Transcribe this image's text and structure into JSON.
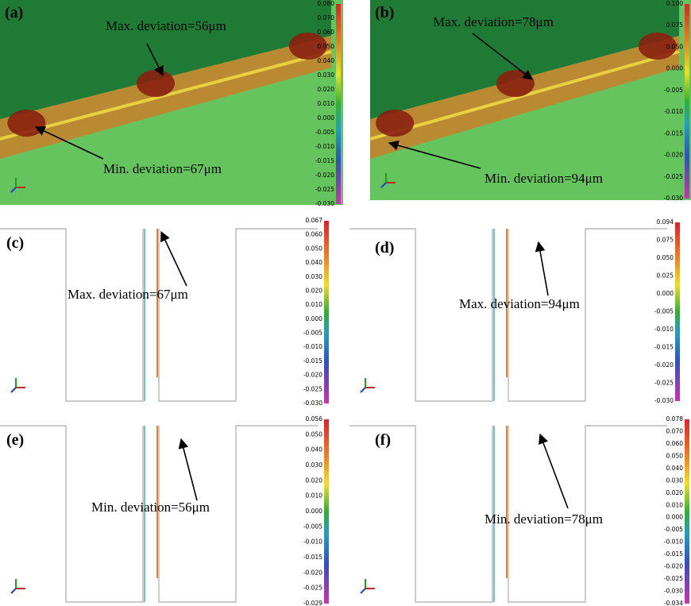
{
  "panels": [
    {
      "label": "(a)",
      "annotations": [
        "Max. deviation=56μm",
        "Min. deviation=67μm"
      ],
      "scale_ticks": [
        "0.080",
        "0.070",
        "0.060",
        "0.050",
        "0.040",
        "0.030",
        "0.020",
        "0.010",
        "0.000",
        "-0.005",
        "-0.010",
        "-0.015",
        "-0.020",
        "-0.025",
        "-0.030"
      ]
    },
    {
      "label": "(b)",
      "annotations": [
        "Max. deviation=78μm",
        "Min. deviation=94μm"
      ],
      "scale_ticks": [
        "0.100",
        "0.075",
        "0.050",
        "0.000",
        "-0.005",
        "-0.010",
        "-0.015",
        "-0.020",
        "-0.025",
        "-0.030"
      ]
    },
    {
      "label": "(c)",
      "annotations": [
        "Max. deviation=67μm"
      ],
      "scale_ticks": [
        "0.067",
        "0.060",
        "0.050",
        "0.040",
        "0.030",
        "0.020",
        "0.010",
        "0.000",
        "-0.005",
        "-0.010",
        "-0.015",
        "-0.020",
        "-0.025",
        "-0.030"
      ]
    },
    {
      "label": "(d)",
      "annotations": [
        "Max. deviation=94μm"
      ],
      "scale_ticks": [
        "0.094",
        "0.075",
        "0.050",
        "0.025",
        "0.000",
        "-0.005",
        "-0.010",
        "-0.015",
        "-0.020",
        "-0.025",
        "-0.030"
      ]
    },
    {
      "label": "(e)",
      "annotations": [
        "Min. deviation=56μm"
      ],
      "scale_ticks": [
        "0.056",
        "0.050",
        "0.040",
        "0.030",
        "0.020",
        "0.010",
        "0.000",
        "-0.005",
        "-0.010",
        "-0.015",
        "-0.020",
        "-0.025",
        "-0.029"
      ]
    },
    {
      "label": "(f)",
      "annotations": [
        "Min. deviation=78μm"
      ],
      "scale_ticks": [
        "0.078",
        "0.070",
        "0.060",
        "0.050",
        "0.040",
        "0.030",
        "0.020",
        "0.010",
        "0.000",
        "-0.005",
        "-0.010",
        "-0.015",
        "-0.020",
        "-0.025",
        "-0.030",
        "-0.034"
      ]
    }
  ]
}
